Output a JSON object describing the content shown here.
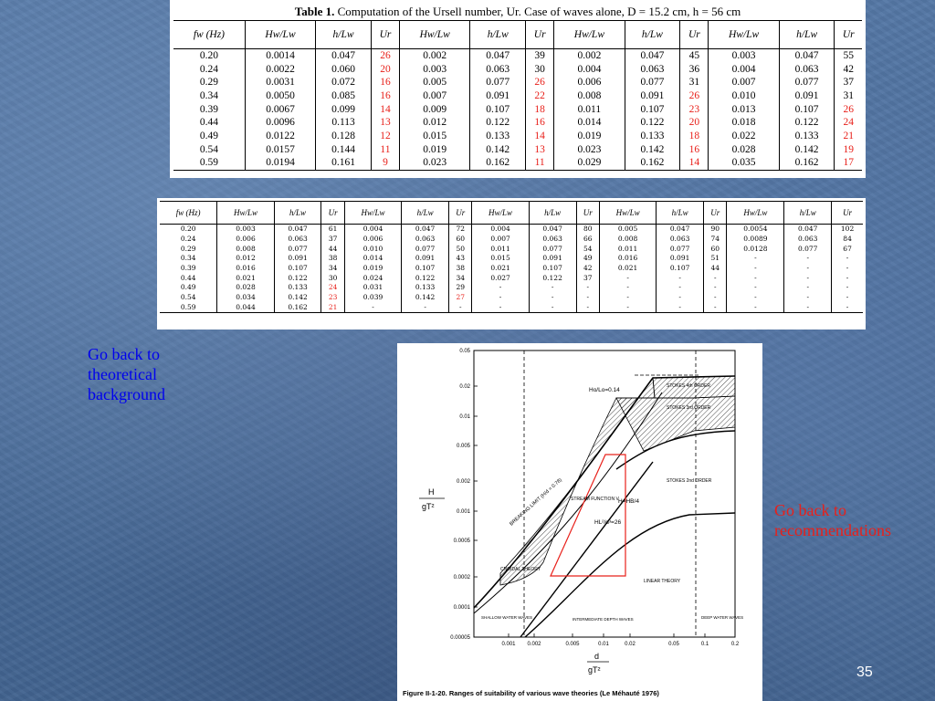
{
  "table1": {
    "caption_prefix": "Table 1.",
    "caption_text": "Computation of the Ursell number, Ur. Case of waves alone, D = 15.2 cm, h = 56 cm",
    "headers": [
      "fw (Hz)",
      "Hw/Lw",
      "h/Lw",
      "Ur",
      "Hw/Lw",
      "h/Lw",
      "Ur",
      "Hw/Lw",
      "h/Lw",
      "Ur",
      "Hw/Lw",
      "h/Lw",
      "Ur"
    ],
    "rows": [
      [
        "0.20",
        "0.0014",
        "0.047",
        "26",
        "0.002",
        "0.047",
        "39",
        "0.002",
        "0.047",
        "45",
        "0.003",
        "0.047",
        "55"
      ],
      [
        "0.24",
        "0.0022",
        "0.060",
        "20",
        "0.003",
        "0.063",
        "30",
        "0.004",
        "0.063",
        "36",
        "0.004",
        "0.063",
        "42"
      ],
      [
        "0.29",
        "0.0031",
        "0.072",
        "16",
        "0.005",
        "0.077",
        "26",
        "0.006",
        "0.077",
        "31",
        "0.007",
        "0.077",
        "37"
      ],
      [
        "0.34",
        "0.0050",
        "0.085",
        "16",
        "0.007",
        "0.091",
        "22",
        "0.008",
        "0.091",
        "26",
        "0.010",
        "0.091",
        "31"
      ],
      [
        "0.39",
        "0.0067",
        "0.099",
        "14",
        "0.009",
        "0.107",
        "18",
        "0.011",
        "0.107",
        "23",
        "0.013",
        "0.107",
        "26"
      ],
      [
        "0.44",
        "0.0096",
        "0.113",
        "13",
        "0.012",
        "0.122",
        "16",
        "0.014",
        "0.122",
        "20",
        "0.018",
        "0.122",
        "24"
      ],
      [
        "0.49",
        "0.0122",
        "0.128",
        "12",
        "0.015",
        "0.133",
        "14",
        "0.019",
        "0.133",
        "18",
        "0.022",
        "0.133",
        "21"
      ],
      [
        "0.54",
        "0.0157",
        "0.144",
        "11",
        "0.019",
        "0.142",
        "13",
        "0.023",
        "0.142",
        "16",
        "0.028",
        "0.142",
        "19"
      ],
      [
        "0.59",
        "0.0194",
        "0.161",
        "9",
        "0.023",
        "0.162",
        "11",
        "0.029",
        "0.162",
        "14",
        "0.035",
        "0.162",
        "17"
      ]
    ],
    "red_cells": [
      [
        0,
        3
      ],
      [
        1,
        3
      ],
      [
        2,
        3
      ],
      [
        3,
        3
      ],
      [
        4,
        3
      ],
      [
        5,
        3
      ],
      [
        6,
        3
      ],
      [
        7,
        3
      ],
      [
        8,
        3
      ],
      [
        2,
        6
      ],
      [
        3,
        6
      ],
      [
        4,
        6
      ],
      [
        5,
        6
      ],
      [
        6,
        6
      ],
      [
        7,
        6
      ],
      [
        8,
        6
      ],
      [
        3,
        9
      ],
      [
        4,
        9
      ],
      [
        5,
        9
      ],
      [
        6,
        9
      ],
      [
        7,
        9
      ],
      [
        8,
        9
      ],
      [
        4,
        12
      ],
      [
        5,
        12
      ],
      [
        6,
        12
      ],
      [
        7,
        12
      ],
      [
        8,
        12
      ]
    ]
  },
  "table2": {
    "headers": [
      "fw (Hz)",
      "Hw/Lw",
      "h/Lw",
      "Ur",
      "Hw/Lw",
      "h/Lw",
      "Ur",
      "Hw/Lw",
      "h/Lw",
      "Ur",
      "Hw/Lw",
      "h/Lw",
      "Ur",
      "Hw/Lw",
      "h/Lw",
      "Ur"
    ],
    "rows": [
      [
        "0.20",
        "0.003",
        "0.047",
        "61",
        "0.004",
        "0.047",
        "72",
        "0.004",
        "0.047",
        "80",
        "0.005",
        "0.047",
        "90",
        "0.0054",
        "0.047",
        "102"
      ],
      [
        "0.24",
        "0.006",
        "0.063",
        "37",
        "0.006",
        "0.063",
        "60",
        "0.007",
        "0.063",
        "66",
        "0.008",
        "0.063",
        "74",
        "0.0089",
        "0.063",
        "84"
      ],
      [
        "0.29",
        "0.008",
        "0.077",
        "44",
        "0.010",
        "0.077",
        "50",
        "0.011",
        "0.077",
        "54",
        "0.011",
        "0.077",
        "60",
        "0.0128",
        "0.077",
        "67"
      ],
      [
        "0.34",
        "0.012",
        "0.091",
        "38",
        "0.014",
        "0.091",
        "43",
        "0.015",
        "0.091",
        "49",
        "0.016",
        "0.091",
        "51",
        "-",
        "-",
        "-"
      ],
      [
        "0.39",
        "0.016",
        "0.107",
        "34",
        "0.019",
        "0.107",
        "38",
        "0.021",
        "0.107",
        "42",
        "0.021",
        "0.107",
        "44",
        "-",
        "-",
        "-"
      ],
      [
        "0.44",
        "0.021",
        "0.122",
        "30",
        "0.024",
        "0.122",
        "34",
        "0.027",
        "0.122",
        "37",
        "-",
        "-",
        "-",
        "-",
        "-",
        "-"
      ],
      [
        "0.49",
        "0.028",
        "0.133",
        "24",
        "0.031",
        "0.133",
        "29",
        "-",
        "-",
        "-",
        "-",
        "-",
        "-",
        "-",
        "-",
        "-"
      ],
      [
        "0.54",
        "0.034",
        "0.142",
        "23",
        "0.039",
        "0.142",
        "27",
        "-",
        "-",
        "-",
        "-",
        "-",
        "-",
        "-",
        "-",
        "-"
      ],
      [
        "0.59",
        "0.044",
        "0.162",
        "21",
        "-",
        "-",
        "-",
        "-",
        "-",
        "-",
        "-",
        "-",
        "-",
        "-",
        "-",
        "-"
      ]
    ],
    "red_cells": [
      [
        6,
        3
      ],
      [
        7,
        3
      ],
      [
        8,
        3
      ],
      [
        7,
        6
      ]
    ]
  },
  "links": {
    "theory": "Go back to theoretical background",
    "recommendations": "Go back to recommendations"
  },
  "figure": {
    "caption": "Figure II-1-20.   Ranges of suitability of various wave theories (Le Méhauté 1976)",
    "y_axis_label_top": "H",
    "y_axis_label_bottom": "gT²",
    "x_axis_label_top": "d",
    "x_axis_label_bottom": "gT²",
    "y_ticks": [
      "0.05",
      "0.02",
      "0.01",
      "0.005",
      "0.002",
      "0.001",
      "0.0005",
      "0.0002",
      "0.0001",
      "0.00005"
    ],
    "x_ticks": [
      "0.001",
      "0.002",
      "0.005",
      "0.01",
      "0.02",
      "0.05",
      "0.1",
      "0.2"
    ],
    "labels": {
      "deep_limit": "Ho/Lo=0.14",
      "stokes4": "STOKES 4th ORDER",
      "stokes3": "STOKES 3rd ORDER",
      "stokes2": "STOKES 2nd ORDER",
      "breaking": "BREAKING LIMIT (H/d = 0.78)",
      "stream": "STREAM FUNCTION V",
      "hb4": "H=HB/4",
      "ursell": "HL²/d³=26",
      "cnoidal": "CNOIDAL THEORY",
      "linear": "LINEAR THEORY",
      "shallow": "SHALLOW WATER WAVES",
      "intermediate": "INTERMEDIATE DEPTH WAVES",
      "deep": "DEEP WATER WAVES"
    }
  },
  "page_number": "35",
  "colors": {
    "highlight_red": "#e8201a",
    "link_blue": "#0000ee",
    "slide_bg": "#4a6d9b"
  }
}
